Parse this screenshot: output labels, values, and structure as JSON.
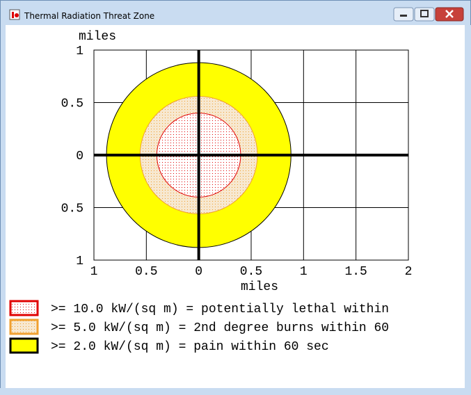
{
  "window": {
    "title": "Thermal Radiation Threat Zone"
  },
  "chart_data": {
    "type": "circle",
    "xlabel": "miles",
    "ylabel": "miles",
    "xlim": [
      -1,
      2
    ],
    "ylim": [
      -1,
      1
    ],
    "xticks": [
      {
        "value": -1,
        "label": "1"
      },
      {
        "value": -0.5,
        "label": "0.5"
      },
      0,
      0.5,
      1,
      1.5,
      2
    ],
    "yticks": [
      {
        "value": -1,
        "label": "1"
      },
      {
        "value": -0.5,
        "label": "0.5"
      },
      0,
      0.5,
      1
    ],
    "grid": true,
    "series": [
      {
        "name": ">= 10.0 kW/(sq m) = potentially lethal within",
        "color": "#e00000",
        "border": "#e00000",
        "fill": "dots",
        "values": [
          0.4
        ]
      },
      {
        "name": ">= 5.0 kW/(sq m) = 2nd degree burns within 60",
        "color": "#f0a030",
        "border": "#f0a030",
        "fill": "dots",
        "values": [
          0.56
        ]
      },
      {
        "name": ">= 2.0 kW/(sq m) = pain within 60 sec",
        "color": "#ffff00",
        "border": "#000000",
        "fill": "solid",
        "values": [
          0.88
        ]
      }
    ]
  }
}
